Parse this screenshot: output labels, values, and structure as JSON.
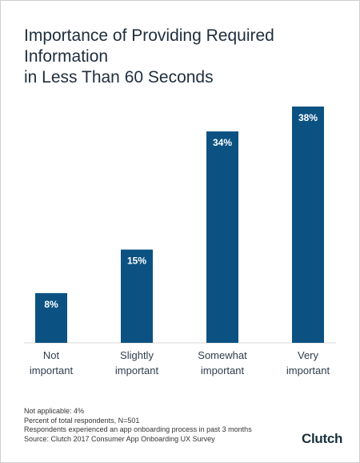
{
  "title_lines": [
    "Importance of Providing Required Information",
    "in Less Than 60 Seconds"
  ],
  "chart_data": {
    "type": "bar",
    "title": "Importance of Providing Required Information in Less Than 60 Seconds",
    "categories": [
      [
        "Not",
        "important"
      ],
      [
        "Slightly",
        "important"
      ],
      [
        "Somewhat",
        "important"
      ],
      [
        "Very",
        "important"
      ]
    ],
    "values": [
      8,
      15,
      34,
      38
    ],
    "value_labels": [
      "8%",
      "15%",
      "34%",
      "38%"
    ],
    "unit": "%",
    "ylim": [
      0,
      38
    ],
    "grid": false,
    "bar_color": "#0b5283"
  },
  "footnotes": [
    "Not applicable: 4%",
    "Percent of total respondents, N=501",
    "Respondents experienced an app onboarding process in past 3 months",
    "Source: Clutch 2017 Consumer App Onboarding UX Survey"
  ],
  "logo": {
    "text": "Clutch",
    "accent": "#e5523f"
  }
}
